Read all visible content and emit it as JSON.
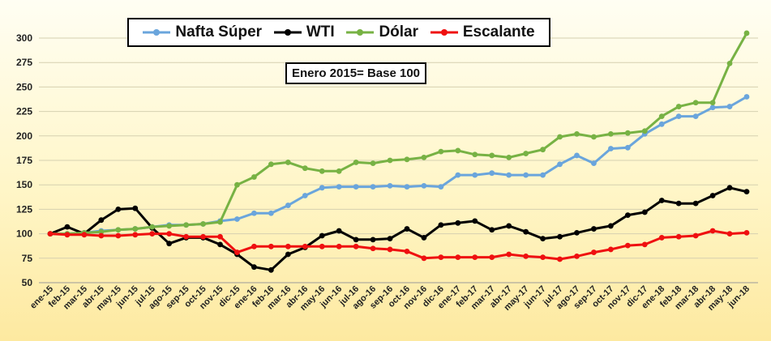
{
  "chart_data": {
    "type": "line",
    "title": "",
    "xlabel": "",
    "ylabel": "",
    "annotation": "Enero 2015= Base 100",
    "ylim": [
      50,
      300
    ],
    "yticks": [
      50,
      75,
      100,
      125,
      150,
      175,
      200,
      225,
      250,
      275,
      300
    ],
    "grid": true,
    "legend_position": "top",
    "categories": [
      "ene-15",
      "feb-15",
      "mar-15",
      "abr-15",
      "may-15",
      "jun-15",
      "jul-15",
      "ago-15",
      "sep-15",
      "oct-15",
      "nov-15",
      "dic-15",
      "ene-16",
      "feb-16",
      "mar-16",
      "abr-16",
      "may-16",
      "jun-16",
      "jul-16",
      "ago-16",
      "sep-16",
      "oct-16",
      "nov-16",
      "dic-16",
      "ene-17",
      "feb-17",
      "mar-17",
      "abr-17",
      "may-17",
      "jun-17",
      "jul-17",
      "ago-17",
      "sep-17",
      "oct-17",
      "nov-17",
      "dic-17",
      "ene-18",
      "feb-18",
      "mar-18",
      "abr-18",
      "may-18",
      "jun-18"
    ],
    "series": [
      {
        "name": "Nafta Súper",
        "color": "#6aa5dc",
        "values": [
          100,
          100,
          101,
          103,
          104,
          105,
          107,
          109,
          109,
          110,
          113,
          115,
          121,
          121,
          129,
          139,
          147,
          148,
          148,
          148,
          149,
          148,
          149,
          148,
          160,
          160,
          162,
          160,
          160,
          160,
          171,
          180,
          172,
          187,
          188,
          202,
          212,
          220,
          220,
          229,
          230,
          240
        ]
      },
      {
        "name": "WTI",
        "color": "#000000",
        "values": [
          100,
          107,
          100,
          114,
          125,
          126,
          106,
          90,
          96,
          96,
          89,
          79,
          66,
          63,
          79,
          86,
          98,
          103,
          94,
          94,
          95,
          105,
          96,
          109,
          111,
          113,
          104,
          108,
          102,
          95,
          97,
          101,
          105,
          108,
          119,
          122,
          134,
          131,
          131,
          139,
          147,
          143
        ]
      },
      {
        "name": "Dólar",
        "color": "#77b244",
        "values": [
          100,
          100,
          101,
          102,
          104,
          105,
          107,
          108,
          109,
          110,
          112,
          150,
          158,
          171,
          173,
          167,
          164,
          164,
          173,
          172,
          175,
          176,
          178,
          184,
          185,
          181,
          180,
          178,
          182,
          186,
          199,
          202,
          199,
          202,
          203,
          205,
          220,
          230,
          234,
          234,
          274,
          305
        ]
      },
      {
        "name": "Escalante",
        "color": "#ef1010",
        "values": [
          100,
          99,
          99,
          98,
          98,
          99,
          100,
          100,
          97,
          97,
          97,
          81,
          87,
          87,
          87,
          87,
          87,
          87,
          87,
          85,
          84,
          82,
          75,
          76,
          76,
          76,
          76,
          79,
          77,
          76,
          74,
          77,
          81,
          84,
          88,
          89,
          96,
          97,
          98,
          103,
          100,
          101
        ]
      }
    ]
  }
}
